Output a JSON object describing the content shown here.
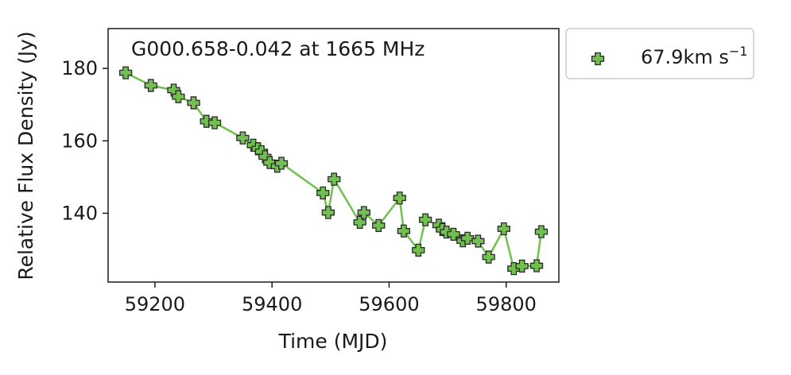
{
  "chart_data": {
    "type": "line",
    "title": "G000.658-0.042 at 1665 MHz",
    "xlabel": "Time (MJD)",
    "ylabel": "Relative Flux Density (Jy)",
    "xlim": [
      59120,
      59890
    ],
    "ylim": [
      121,
      191
    ],
    "xticks": [
      59200,
      59400,
      59600,
      59800
    ],
    "yticks": [
      140,
      160,
      180
    ],
    "grid": false,
    "legend_position": "outside-top-right",
    "series": [
      {
        "name": "67.9km s",
        "name_superscript": "−1",
        "color": "#72c04f",
        "marker": "plus-filled",
        "x": [
          59150,
          59193,
          59232,
          59240,
          59266,
          59288,
          59302,
          59350,
          59368,
          59376,
          59382,
          59388,
          59396,
          59409,
          59416,
          59487,
          59496,
          59506,
          59550,
          59557,
          59582,
          59618,
          59625,
          59650,
          59662,
          59685,
          59691,
          59698,
          59710,
          59726,
          59734,
          59752,
          59770,
          59796,
          59813,
          59827,
          59852,
          59860
        ],
        "y": [
          178.8,
          175.3,
          174.0,
          172.2,
          170.5,
          165.4,
          165.0,
          160.8,
          158.8,
          157.8,
          157.0,
          155.6,
          154.0,
          153.0,
          153.8,
          145.6,
          140.2,
          149.4,
          137.5,
          140.2,
          136.6,
          144.2,
          135.1,
          129.8,
          138.2,
          136.7,
          135.5,
          134.8,
          134.2,
          132.4,
          133.1,
          132.3,
          127.9,
          135.7,
          124.7,
          125.4,
          125.5,
          134.9
        ]
      }
    ]
  }
}
